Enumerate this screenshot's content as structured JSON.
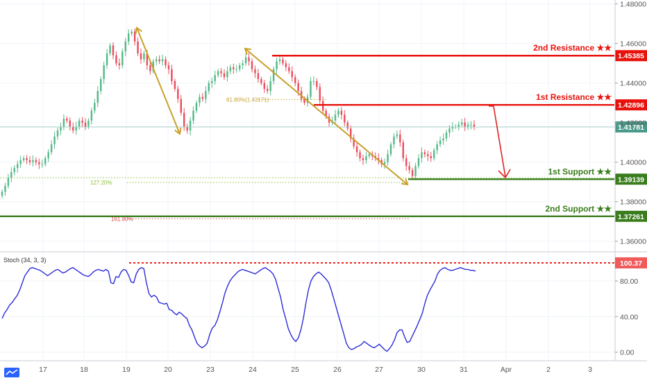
{
  "chart_data": {
    "type": "candlestick",
    "price_axis": {
      "ylim": [
        1.355,
        1.482
      ],
      "ticks": [
        "1.48000",
        "1.46000",
        "1.44000",
        "1.42000",
        "1.40000",
        "1.38000",
        "1.36000"
      ],
      "tick_values": [
        1.48,
        1.46,
        1.44,
        1.42,
        1.4,
        1.38,
        1.36
      ]
    },
    "x_axis": {
      "labels": [
        "17",
        "18",
        "19",
        "20",
        "23",
        "24",
        "25",
        "26",
        "27",
        "30",
        "31",
        "Apr",
        "2",
        "3"
      ]
    },
    "levels": [
      {
        "label": "2nd Resistance ★★",
        "value": 1.45385,
        "value_text": "1.45385",
        "color": "#e8120c",
        "kind": "resistance"
      },
      {
        "label": "1st Resistance ★★",
        "value": 1.42896,
        "value_text": "1.42896",
        "color": "#e8120c",
        "kind": "resistance"
      },
      {
        "label": "1st Support ★★",
        "value": 1.39139,
        "value_text": "1.39139",
        "color": "#3a7d1c",
        "kind": "support"
      },
      {
        "label": "2nd Support ★★",
        "value": 1.37261,
        "value_text": "1.37261",
        "color": "#3a7d1c",
        "kind": "support"
      }
    ],
    "current_price": {
      "value": 1.41781,
      "value_text": "1.41781",
      "color": "#4a9a8a"
    },
    "fibonacci": [
      {
        "label": "61.80%(1.43171)",
        "value": 1.43171,
        "color": "#c8a02a"
      },
      {
        "label": "127.20%",
        "value": 1.3897,
        "color": "#8bbf3a"
      },
      {
        "label": "161.80%",
        "value": 1.3714,
        "color": "#d94a4a"
      }
    ],
    "close_series": [
      1.385,
      1.388,
      1.392,
      1.395,
      1.397,
      1.399,
      1.401,
      1.402,
      1.401,
      1.4,
      1.401,
      1.4,
      1.399,
      1.399,
      1.402,
      1.405,
      1.409,
      1.413,
      1.416,
      1.418,
      1.422,
      1.421,
      1.418,
      1.416,
      1.418,
      1.421,
      1.42,
      1.418,
      1.421,
      1.426,
      1.43,
      1.436,
      1.442,
      1.449,
      1.455,
      1.459,
      1.454,
      1.45,
      1.449,
      1.456,
      1.461,
      1.465,
      1.466,
      1.461,
      1.455,
      1.452,
      1.455,
      1.449,
      1.446,
      1.451,
      1.452,
      1.451,
      1.452,
      1.449,
      1.447,
      1.441,
      1.437,
      1.432,
      1.425,
      1.418,
      1.416,
      1.421,
      1.426,
      1.43,
      1.433,
      1.432,
      1.436,
      1.44,
      1.441,
      1.444,
      1.446,
      1.445,
      1.443,
      1.446,
      1.448,
      1.447,
      1.447,
      1.449,
      1.45,
      1.453,
      1.451,
      1.447,
      1.445,
      1.442,
      1.44,
      1.437,
      1.436,
      1.441,
      1.447,
      1.451,
      1.452,
      1.45,
      1.448,
      1.446,
      1.443,
      1.44,
      1.436,
      1.432,
      1.43,
      1.433,
      1.441,
      1.441,
      1.438,
      1.431,
      1.426,
      1.423,
      1.42,
      1.421,
      1.424,
      1.426,
      1.424,
      1.42,
      1.417,
      1.412,
      1.408,
      1.405,
      1.402,
      1.401,
      1.403,
      1.404,
      1.403,
      1.402,
      1.401,
      1.399,
      1.4,
      1.404,
      1.409,
      1.413,
      1.414,
      1.41,
      1.402,
      1.398,
      1.396,
      1.393,
      1.398,
      1.402,
      1.405,
      1.404,
      1.403,
      1.402,
      1.406,
      1.409,
      1.411,
      1.412,
      1.415,
      1.417,
      1.418,
      1.418,
      1.419,
      1.42,
      1.418,
      1.419,
      1.419,
      1.418
    ],
    "stochastic": {
      "label": "Stoch (34, 3, 3)",
      "ylim": [
        -8,
        112
      ],
      "ticks": [
        "80.00",
        "40.00",
        "0.00"
      ],
      "tick_values": [
        80,
        40,
        0
      ],
      "level_text": "100.37",
      "level": 100.37,
      "values": [
        38,
        44,
        48,
        53,
        56,
        60,
        64,
        70,
        78,
        86,
        90,
        94,
        95,
        94,
        93,
        92,
        90,
        88,
        86,
        88,
        90,
        92,
        93,
        91,
        89,
        90,
        92,
        94,
        95,
        93,
        91,
        89,
        87,
        86,
        85,
        87,
        90,
        92,
        93,
        92,
        91,
        93,
        91,
        78,
        77,
        85,
        84,
        90,
        93,
        92,
        86,
        79,
        78,
        88,
        93,
        95,
        94,
        78,
        66,
        62,
        64,
        62,
        56,
        55,
        54,
        55,
        48,
        47,
        44,
        42,
        45,
        43,
        40,
        38,
        30,
        25,
        17,
        10,
        7,
        5,
        7,
        10,
        20,
        27,
        30,
        36,
        45,
        55,
        66,
        74,
        80,
        84,
        87,
        90,
        92,
        93,
        92,
        91,
        90,
        89,
        88,
        90,
        92,
        94,
        95,
        93,
        91,
        88,
        82,
        72,
        62,
        48,
        38,
        27,
        20,
        15,
        12,
        16,
        25,
        38,
        55,
        70,
        80,
        85,
        88,
        90,
        88,
        85,
        82,
        78,
        70,
        60,
        50,
        40,
        30,
        20,
        10,
        5,
        3,
        4,
        6,
        7,
        9,
        12,
        10,
        8,
        6,
        5,
        7,
        9,
        6,
        3,
        1,
        4,
        8,
        14,
        22,
        25,
        25,
        17,
        11,
        12,
        18,
        24,
        30,
        37,
        44,
        55,
        64,
        70,
        75,
        80,
        88,
        92,
        94,
        95,
        93,
        92,
        92,
        93,
        94,
        95,
        94,
        93,
        93,
        92,
        92,
        91
      ]
    }
  },
  "branding": {
    "icon": "tradingview-logo-icon",
    "colors": {
      "bull": "#53b987",
      "bear": "#eb4d5c",
      "stoch_line": "#2b2bd8",
      "arrow": "#e02020",
      "wave_arrow": "#c8a02a",
      "grid": "#f0f3fa",
      "axis_text": "#555555"
    }
  }
}
